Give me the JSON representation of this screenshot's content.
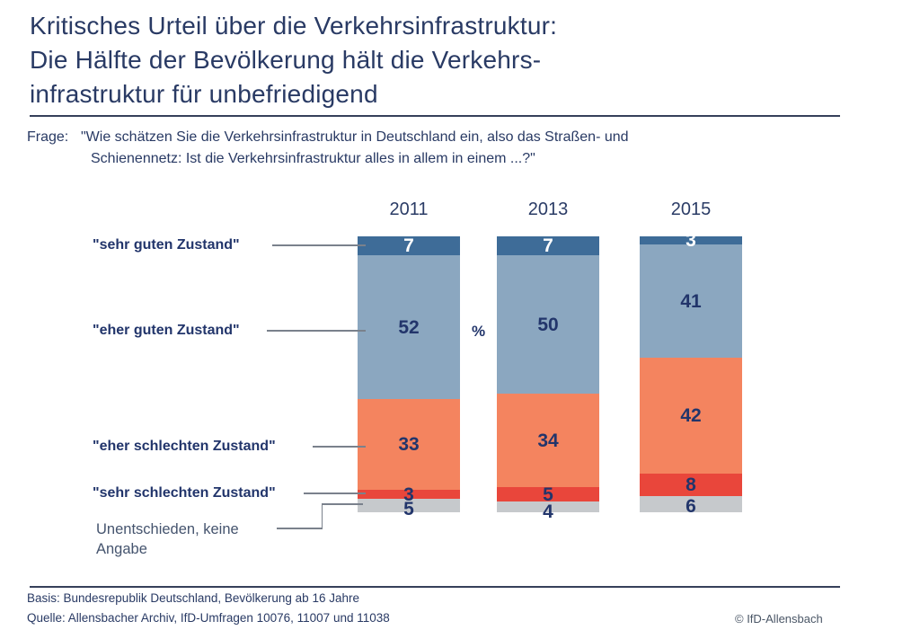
{
  "title": {
    "line1": "Kritisches Urteil über die Verkehrsinfrastruktur:",
    "line2": "Die Hälfte der Bevölkerung hält die Verkehrs-",
    "line3": "infrastruktur für unbefriedigend"
  },
  "question": {
    "label": "Frage:",
    "line1": "\"Wie schätzen Sie die Verkehrsinfrastruktur in Deutschland ein, also das Straßen- und",
    "line2": "Schienennetz: Ist die Verkehrsinfrastruktur alles in allem in einem ...?\""
  },
  "chart_data": {
    "type": "stacked-bar",
    "unit_label": "%",
    "categories": [
      "2011",
      "2013",
      "2015"
    ],
    "series": [
      {
        "name": "\"sehr guten Zustand\"",
        "color": "#3E6C98",
        "value_color": "#FFFFFF",
        "values": [
          7,
          7,
          3
        ]
      },
      {
        "name": "\"eher guten Zustand\"",
        "color": "#8BA7C0",
        "value_color": "#22356B",
        "values": [
          52,
          50,
          41
        ]
      },
      {
        "name": "\"eher schlechten Zustand\"",
        "color": "#F4845F",
        "value_color": "#22356B",
        "values": [
          33,
          34,
          42
        ]
      },
      {
        "name": "\"sehr schlechten Zustand\"",
        "color": "#E9463B",
        "value_color": "#22356B",
        "values": [
          3,
          5,
          8
        ]
      },
      {
        "name": "Unentschieden, keine Angabe",
        "color": "#C6C9CC",
        "value_color": "#22356B",
        "values": [
          5,
          4,
          6
        ]
      }
    ],
    "ylim": [
      0,
      100
    ],
    "legend_position": "left-labels",
    "grid": false
  },
  "side_labels": {
    "unentschieden_line1": "Unentschieden, keine",
    "unentschieden_line2": "Angabe"
  },
  "footer": {
    "basis": "Basis: Bundesrepublik Deutschland, Bevölkerung ab 16 Jahre",
    "quelle": "Quelle: Allensbacher Archiv, IfD-Umfragen 10076, 11007 und 11038",
    "copyright": "© IfD-Allensbach"
  }
}
